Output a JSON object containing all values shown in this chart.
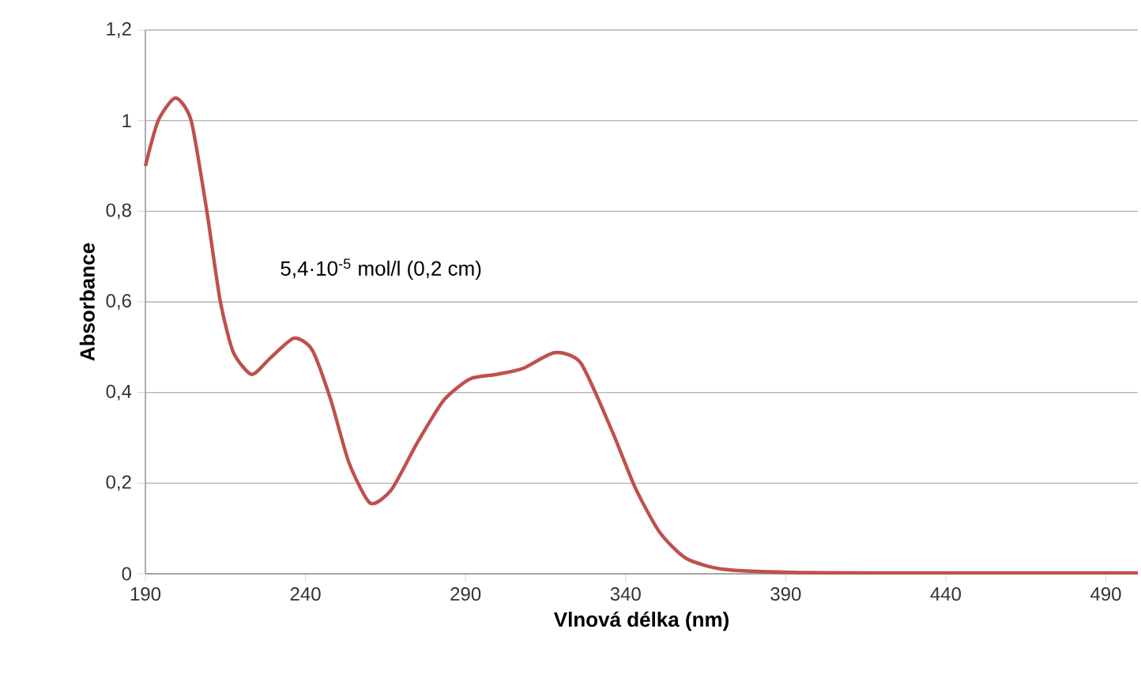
{
  "chart_data": {
    "type": "line",
    "xlabel": "Vlnová délka (nm)",
    "ylabel": "Absorbance",
    "annotations": [
      "5,4·10$^{-5}$ mol/l (0,2 cm)"
    ],
    "series": [
      {
        "color": "#c0504d",
        "x": [
          190,
          194,
          199.4,
          204.3,
          209.2,
          213.3,
          217.4,
          223.2,
          229,
          236.4,
          242.1,
          247.9,
          253.6,
          260.2,
          266.8,
          275,
          283.2,
          291.4,
          299.7,
          307.9,
          317.8,
          326,
          335.9,
          343,
          350.6,
          358.9,
          370.4,
          391.8,
          420,
          460,
          500
        ],
        "values": [
          0.9,
          1.0,
          1.05,
          1.0,
          0.8,
          0.605,
          0.49,
          0.44,
          0.476,
          0.52,
          0.494,
          0.384,
          0.245,
          0.156,
          0.185,
          0.29,
          0.383,
          0.43,
          0.44,
          0.453,
          0.488,
          0.465,
          0.313,
          0.19,
          0.092,
          0.034,
          0.01,
          0.003,
          0.002,
          0.002,
          0.002
        ]
      }
    ],
    "xlim": [
      190,
      500
    ],
    "ylim": [
      0,
      1.2
    ],
    "xticks": [
      190,
      240,
      290,
      340,
      390,
      440,
      490
    ],
    "yticks": [
      {
        "value": 0,
        "label": "0"
      },
      {
        "value": 0.2,
        "label": "0,2"
      },
      {
        "value": 0.4,
        "label": "0,4"
      },
      {
        "value": 0.6,
        "label": "0,6"
      },
      {
        "value": 0.8,
        "label": "0,8"
      },
      {
        "value": 1,
        "label": "1"
      },
      {
        "value": 1.2,
        "label": "1,2"
      }
    ],
    "grid": "y",
    "marker": "none",
    "line_style": "solid"
  }
}
